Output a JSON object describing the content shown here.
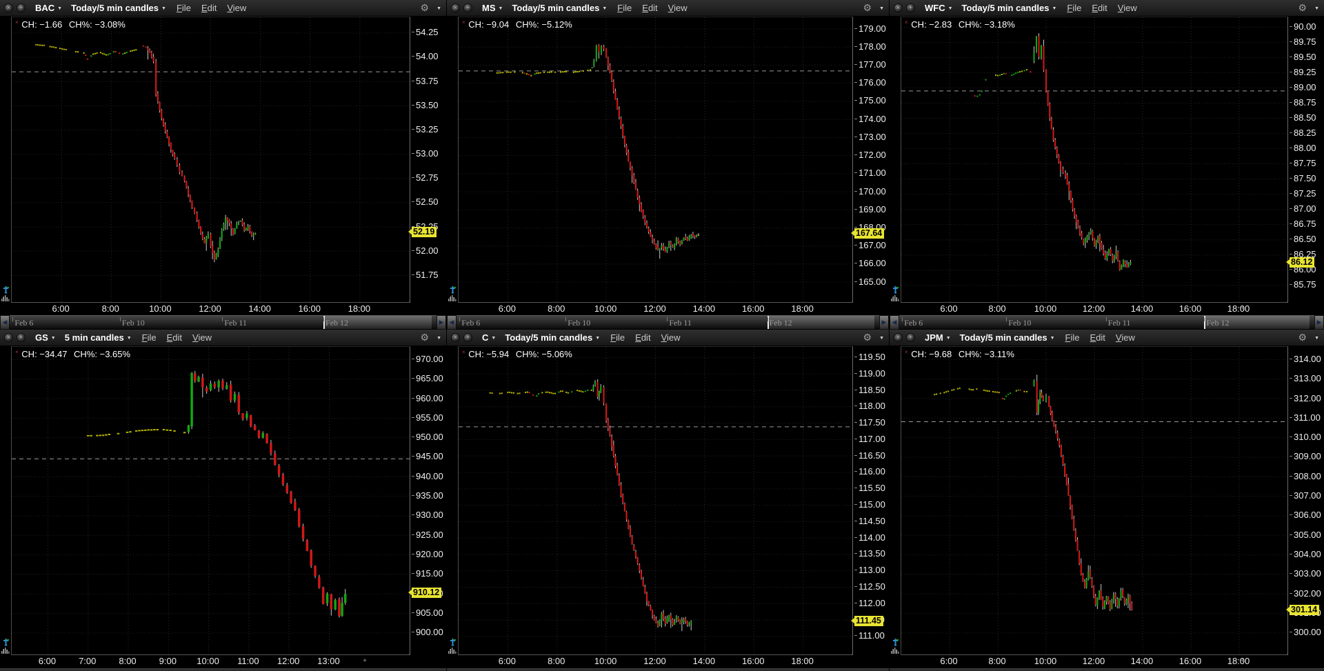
{
  "icons": {
    "close": "×",
    "popout": "+",
    "gear": "⚙",
    "caret": "▼",
    "left_arrow": "◀",
    "right_arrow": "▶",
    "plus_marker": "+",
    "ch_marker": "×"
  },
  "colors": {
    "up": "#13a513",
    "down": "#cf1818",
    "doji": "#b8b400",
    "wick": "#cccccc",
    "grid": "#2b2b2b",
    "prev_close_line": "#9a9a9a",
    "tag_bg": "#e8e431",
    "accent_blue": "#2f8fd6"
  },
  "timeline": {
    "dates": [
      {
        "label": "Feb 6",
        "pos_pct": 1.2
      },
      {
        "label": "Feb 10",
        "pos_pct": 26.3
      },
      {
        "label": "Feb 11",
        "pos_pct": 50.3
      },
      {
        "label": "Feb 12",
        "pos_pct": 74.0
      }
    ],
    "thumb_left_pct": 73.5,
    "thumb_width_pct": 25.3
  },
  "panels": [
    {
      "symbol": "BAC",
      "timeframe": "Today/5 min candles",
      "menus": [
        "File",
        "Edit",
        "View"
      ],
      "ch": "CH: −1.66",
      "chp": "CH%: −3.08%",
      "last_price": "52.19"
    },
    {
      "symbol": "MS",
      "timeframe": "Today/5 min candles",
      "menus": [
        "File",
        "Edit",
        "View"
      ],
      "ch": "CH: −9.04",
      "chp": "CH%: −5.12%",
      "last_price": "167.64"
    },
    {
      "symbol": "WFC",
      "timeframe": "Today/5 min candles",
      "menus": [
        "File",
        "Edit",
        "View"
      ],
      "ch": "CH: −2.83",
      "chp": "CH%: −3.18%",
      "last_price": "86.12"
    },
    {
      "symbol": "GS",
      "timeframe": "5 min candles",
      "menus": [
        "File",
        "Edit",
        "View"
      ],
      "ch": "CH: −34.47",
      "chp": "CH%: −3.65%",
      "last_price": "910.12"
    },
    {
      "symbol": "C",
      "timeframe": "Today/5 min candles",
      "menus": [
        "File",
        "Edit",
        "View"
      ],
      "ch": "CH: −5.94",
      "chp": "CH%: −5.06%",
      "last_price": "111.45"
    },
    {
      "symbol": "JPM",
      "timeframe": "Today/5 min candles",
      "menus": [
        "File",
        "Edit",
        "View"
      ],
      "ch": "CH: −9.68",
      "chp": "CH%: −3.11%",
      "last_price": "301.14"
    }
  ],
  "chart_data": [
    {
      "type": "candlestick",
      "symbol": "BAC",
      "timeframe": "5 min",
      "y_first": 54.25,
      "y_last": 51.75,
      "y_step": 0.25,
      "x_start": 4.0,
      "x_end": 20.0,
      "x_ticks": [
        6,
        8,
        10,
        12,
        14,
        16,
        18
      ],
      "prev_close": 53.85,
      "last": 52.19,
      "pm_end": 9.45,
      "path": [
        [
          4.9,
          54.13
        ],
        [
          5.3,
          54.12
        ],
        [
          5.7,
          54.1
        ],
        [
          6.1,
          54.08
        ],
        [
          6.5,
          54.06
        ],
        [
          6.9,
          54.04
        ],
        [
          7.05,
          53.96
        ],
        [
          7.2,
          54.03
        ],
        [
          7.5,
          54.05
        ],
        [
          7.8,
          54.02
        ],
        [
          8.1,
          54.06
        ],
        [
          8.4,
          54.03
        ],
        [
          8.7,
          54.06
        ],
        [
          9.0,
          54.08
        ],
        [
          9.2,
          54.12
        ],
        [
          9.4,
          54.1
        ],
        [
          9.55,
          54.05
        ],
        [
          9.7,
          53.95
        ],
        [
          9.8,
          53.62
        ],
        [
          9.95,
          53.45
        ],
        [
          10.1,
          53.3
        ],
        [
          10.25,
          53.18
        ],
        [
          10.4,
          53.05
        ],
        [
          10.55,
          52.95
        ],
        [
          10.75,
          52.82
        ],
        [
          10.95,
          52.72
        ],
        [
          11.1,
          52.58
        ],
        [
          11.25,
          52.45
        ],
        [
          11.45,
          52.32
        ],
        [
          11.6,
          52.18
        ],
        [
          11.75,
          52.08
        ],
        [
          11.9,
          52.18
        ],
        [
          12.0,
          52.05
        ],
        [
          12.15,
          51.92
        ],
        [
          12.3,
          52.02
        ],
        [
          12.45,
          52.22
        ],
        [
          12.6,
          52.35
        ],
        [
          12.75,
          52.28
        ],
        [
          12.9,
          52.18
        ],
        [
          13.05,
          52.28
        ],
        [
          13.2,
          52.32
        ],
        [
          13.35,
          52.22
        ],
        [
          13.5,
          52.26
        ],
        [
          13.65,
          52.16
        ],
        [
          13.8,
          52.19
        ]
      ]
    },
    {
      "type": "candlestick",
      "symbol": "MS",
      "timeframe": "5 min",
      "y_first": 179.0,
      "y_last": 165.0,
      "y_step": 1.0,
      "x_start": 4.0,
      "x_end": 20.0,
      "x_ticks": [
        6,
        8,
        10,
        12,
        14,
        16,
        18
      ],
      "prev_close": 176.68,
      "last": 167.64,
      "pm_end": 9.45,
      "path": [
        [
          5.4,
          176.55
        ],
        [
          5.8,
          176.6
        ],
        [
          6.2,
          176.62
        ],
        [
          6.6,
          176.58
        ],
        [
          6.95,
          176.4
        ],
        [
          7.1,
          176.55
        ],
        [
          7.4,
          176.6
        ],
        [
          7.7,
          176.62
        ],
        [
          8.0,
          176.6
        ],
        [
          8.3,
          176.64
        ],
        [
          8.6,
          176.6
        ],
        [
          8.9,
          176.66
        ],
        [
          9.15,
          176.7
        ],
        [
          9.35,
          176.75
        ],
        [
          9.5,
          177.2
        ],
        [
          9.6,
          178.1
        ],
        [
          9.7,
          177.7
        ],
        [
          9.8,
          178.05
        ],
        [
          9.9,
          177.9
        ],
        [
          10.0,
          177.4
        ],
        [
          10.15,
          176.6
        ],
        [
          10.3,
          175.6
        ],
        [
          10.45,
          174.6
        ],
        [
          10.6,
          173.6
        ],
        [
          10.75,
          172.6
        ],
        [
          10.9,
          171.7
        ],
        [
          11.05,
          170.9
        ],
        [
          11.2,
          170.1
        ],
        [
          11.35,
          169.3
        ],
        [
          11.5,
          168.6
        ],
        [
          11.65,
          168.0
        ],
        [
          11.8,
          167.5
        ],
        [
          11.95,
          167.1
        ],
        [
          12.1,
          166.8
        ],
        [
          12.25,
          167.0
        ],
        [
          12.4,
          166.7
        ],
        [
          12.55,
          167.2
        ],
        [
          12.7,
          166.9
        ],
        [
          12.85,
          167.4
        ],
        [
          13.0,
          167.1
        ],
        [
          13.15,
          167.5
        ],
        [
          13.3,
          167.3
        ],
        [
          13.45,
          167.64
        ],
        [
          13.6,
          167.5
        ],
        [
          13.75,
          167.64
        ]
      ]
    },
    {
      "type": "candlestick",
      "symbol": "WFC",
      "timeframe": "5 min",
      "y_first": 90.0,
      "y_last": 85.75,
      "y_step": 0.25,
      "x_start": 4.0,
      "x_end": 20.0,
      "x_ticks": [
        6,
        8,
        10,
        12,
        14,
        16,
        18
      ],
      "prev_close": 88.95,
      "last": 86.12,
      "pm_end": 9.45,
      "path": [
        [
          6.9,
          88.92
        ],
        [
          7.05,
          88.85
        ],
        [
          7.25,
          88.9
        ],
        [
          7.5,
          89.18
        ],
        [
          7.75,
          89.22
        ],
        [
          8.0,
          89.2
        ],
        [
          8.25,
          89.24
        ],
        [
          8.5,
          89.2
        ],
        [
          8.75,
          89.25
        ],
        [
          9.0,
          89.28
        ],
        [
          9.2,
          89.3
        ],
        [
          9.35,
          89.25
        ],
        [
          9.5,
          89.6
        ],
        [
          9.6,
          89.85
        ],
        [
          9.7,
          89.5
        ],
        [
          9.8,
          89.7
        ],
        [
          9.9,
          89.3
        ],
        [
          10.0,
          88.95
        ],
        [
          10.15,
          88.5
        ],
        [
          10.3,
          88.15
        ],
        [
          10.45,
          87.9
        ],
        [
          10.6,
          87.65
        ],
        [
          10.8,
          87.55
        ],
        [
          10.95,
          87.3
        ],
        [
          11.1,
          87.0
        ],
        [
          11.25,
          86.8
        ],
        [
          11.4,
          86.6
        ],
        [
          11.55,
          86.45
        ],
        [
          11.7,
          86.55
        ],
        [
          11.85,
          86.65
        ],
        [
          12.0,
          86.4
        ],
        [
          12.15,
          86.55
        ],
        [
          12.3,
          86.35
        ],
        [
          12.45,
          86.2
        ],
        [
          12.6,
          86.35
        ],
        [
          12.75,
          86.15
        ],
        [
          12.9,
          86.3
        ],
        [
          13.05,
          86.0
        ],
        [
          13.2,
          86.15
        ],
        [
          13.35,
          86.05
        ],
        [
          13.5,
          86.12
        ]
      ]
    },
    {
      "type": "candlestick",
      "symbol": "GS",
      "timeframe": "5 min",
      "y_first": 970.0,
      "y_last": 900.0,
      "y_step": 5.0,
      "x_start": 5.1,
      "x_end": 15.0,
      "x_ticks": [
        6,
        7,
        8,
        9,
        10,
        11,
        12,
        13
      ],
      "prev_close": 944.59,
      "last": 910.12,
      "pm_end": 9.45,
      "path": [
        [
          6.7,
          950.4
        ],
        [
          7.0,
          950.5
        ],
        [
          7.3,
          950.6
        ],
        [
          7.6,
          950.9
        ],
        [
          7.9,
          951.3
        ],
        [
          8.2,
          951.8
        ],
        [
          8.5,
          952.0
        ],
        [
          8.8,
          952.1
        ],
        [
          9.05,
          951.8
        ],
        [
          9.25,
          951.5
        ],
        [
          9.4,
          951.3
        ],
        [
          9.5,
          953.0
        ],
        [
          9.58,
          966.5
        ],
        [
          9.66,
          964.5
        ],
        [
          9.75,
          965.5
        ],
        [
          9.85,
          963.0
        ],
        [
          9.95,
          962.0
        ],
        [
          10.05,
          964.0
        ],
        [
          10.15,
          963.0
        ],
        [
          10.25,
          964.5
        ],
        [
          10.35,
          962.5
        ],
        [
          10.45,
          963.5
        ],
        [
          10.55,
          959.5
        ],
        [
          10.65,
          961.0
        ],
        [
          10.75,
          956.5
        ],
        [
          10.85,
          955.0
        ],
        [
          10.95,
          956.0
        ],
        [
          11.05,
          953.0
        ],
        [
          11.15,
          952.0
        ],
        [
          11.25,
          950.0
        ],
        [
          11.35,
          951.0
        ],
        [
          11.45,
          948.5
        ],
        [
          11.55,
          946.0
        ],
        [
          11.65,
          943.0
        ],
        [
          11.75,
          940.5
        ],
        [
          11.85,
          938.0
        ],
        [
          11.95,
          936.0
        ],
        [
          12.05,
          933.5
        ],
        [
          12.15,
          931.5
        ],
        [
          12.25,
          927.5
        ],
        [
          12.35,
          924.0
        ],
        [
          12.45,
          921.0
        ],
        [
          12.55,
          917.0
        ],
        [
          12.65,
          914.5
        ],
        [
          12.75,
          911.5
        ],
        [
          12.85,
          907.5
        ],
        [
          12.95,
          910.0
        ],
        [
          13.05,
          906.0
        ],
        [
          13.15,
          908.5
        ],
        [
          13.25,
          904.5
        ],
        [
          13.32,
          907.5
        ],
        [
          13.4,
          910.12
        ]
      ]
    },
    {
      "type": "candlestick",
      "symbol": "C",
      "timeframe": "5 min",
      "y_first": 119.5,
      "y_last": 111.0,
      "y_step": 0.5,
      "x_start": 4.0,
      "x_end": 20.0,
      "x_ticks": [
        6,
        8,
        10,
        12,
        14,
        16,
        18
      ],
      "prev_close": 117.39,
      "last": 111.45,
      "pm_end": 9.45,
      "path": [
        [
          5.2,
          118.42
        ],
        [
          5.6,
          118.4
        ],
        [
          6.0,
          118.44
        ],
        [
          6.4,
          118.4
        ],
        [
          6.8,
          118.45
        ],
        [
          7.1,
          118.3
        ],
        [
          7.25,
          118.42
        ],
        [
          7.55,
          118.45
        ],
        [
          7.85,
          118.4
        ],
        [
          8.15,
          118.48
        ],
        [
          8.45,
          118.42
        ],
        [
          8.75,
          118.5
        ],
        [
          9.05,
          118.45
        ],
        [
          9.25,
          118.52
        ],
        [
          9.4,
          118.5
        ],
        [
          9.55,
          118.75
        ],
        [
          9.65,
          118.3
        ],
        [
          9.78,
          118.6
        ],
        [
          9.9,
          118.1
        ],
        [
          10.0,
          117.6
        ],
        [
          10.15,
          117.1
        ],
        [
          10.3,
          116.5
        ],
        [
          10.45,
          115.9
        ],
        [
          10.6,
          115.3
        ],
        [
          10.75,
          114.8
        ],
        [
          10.9,
          114.3
        ],
        [
          11.05,
          113.8
        ],
        [
          11.2,
          113.4
        ],
        [
          11.35,
          113.0
        ],
        [
          11.5,
          112.5
        ],
        [
          11.65,
          112.1
        ],
        [
          11.8,
          111.8
        ],
        [
          11.95,
          111.5
        ],
        [
          12.1,
          111.3
        ],
        [
          12.25,
          111.7
        ],
        [
          12.4,
          111.4
        ],
        [
          12.55,
          111.65
        ],
        [
          12.7,
          111.35
        ],
        [
          12.85,
          111.6
        ],
        [
          13.0,
          111.4
        ],
        [
          13.15,
          111.55
        ],
        [
          13.3,
          111.35
        ],
        [
          13.45,
          111.45
        ]
      ]
    },
    {
      "type": "candlestick",
      "symbol": "JPM",
      "timeframe": "5 min",
      "y_first": 314.0,
      "y_last": 300.0,
      "y_step": 1.0,
      "x_start": 4.0,
      "x_end": 20.0,
      "x_ticks": [
        6,
        8,
        10,
        12,
        14,
        16,
        18
      ],
      "prev_close": 310.82,
      "last": 301.14,
      "pm_end": 9.45,
      "path": [
        [
          5.3,
          312.2
        ],
        [
          5.7,
          312.3
        ],
        [
          6.1,
          312.45
        ],
        [
          6.5,
          312.55
        ],
        [
          6.9,
          312.45
        ],
        [
          7.2,
          312.5
        ],
        [
          7.5,
          312.4
        ],
        [
          7.8,
          312.35
        ],
        [
          8.05,
          312.3
        ],
        [
          8.2,
          311.9
        ],
        [
          8.35,
          312.2
        ],
        [
          8.6,
          312.35
        ],
        [
          8.85,
          312.45
        ],
        [
          9.1,
          312.35
        ],
        [
          9.3,
          312.4
        ],
        [
          9.5,
          312.9
        ],
        [
          9.62,
          311.3
        ],
        [
          9.75,
          312.3
        ],
        [
          9.88,
          311.9
        ],
        [
          10.0,
          312.1
        ],
        [
          10.12,
          311.6
        ],
        [
          10.25,
          310.9
        ],
        [
          10.4,
          310.3
        ],
        [
          10.55,
          309.6
        ],
        [
          10.7,
          308.6
        ],
        [
          10.85,
          307.6
        ],
        [
          11.0,
          306.5
        ],
        [
          11.15,
          305.3
        ],
        [
          11.3,
          304.2
        ],
        [
          11.45,
          303.0
        ],
        [
          11.6,
          302.3
        ],
        [
          11.75,
          303.2
        ],
        [
          11.9,
          302.4
        ],
        [
          12.05,
          301.4
        ],
        [
          12.2,
          302.2
        ],
        [
          12.35,
          301.3
        ],
        [
          12.5,
          301.9
        ],
        [
          12.65,
          301.2
        ],
        [
          12.8,
          302.0
        ],
        [
          12.95,
          301.4
        ],
        [
          13.1,
          302.2
        ],
        [
          13.25,
          301.5
        ],
        [
          13.4,
          301.9
        ],
        [
          13.55,
          301.14
        ]
      ]
    }
  ]
}
